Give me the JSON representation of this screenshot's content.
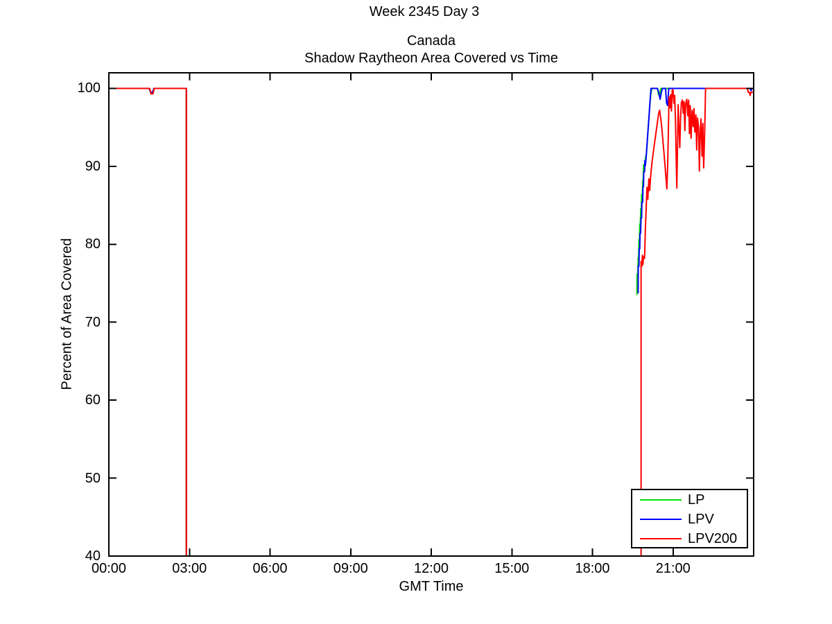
{
  "chart_data": {
    "type": "line",
    "suptitle": "Week 2345 Day 3",
    "title_lines": [
      "Canada",
      "Shadow Raytheon Area Covered vs Time"
    ],
    "xlabel": "GMT Time",
    "ylabel": "Percent of Area Covered",
    "x_axis": {
      "unit": "hours GMT",
      "range": [
        0,
        24
      ]
    },
    "ylim": [
      40,
      102
    ],
    "grid": false,
    "x_ticks": [
      {
        "h": 0,
        "label": "00:00"
      },
      {
        "h": 3,
        "label": "03:00"
      },
      {
        "h": 6,
        "label": "06:00"
      },
      {
        "h": 9,
        "label": "09:00"
      },
      {
        "h": 12,
        "label": "12:00"
      },
      {
        "h": 15,
        "label": "15:00"
      },
      {
        "h": 18,
        "label": "18:00"
      },
      {
        "h": 21,
        "label": "21:00"
      }
    ],
    "y_ticks": [
      {
        "v": 40,
        "label": "40"
      },
      {
        "v": 50,
        "label": "50"
      },
      {
        "v": 60,
        "label": "60"
      },
      {
        "v": 70,
        "label": "70"
      },
      {
        "v": 80,
        "label": "80"
      },
      {
        "v": 90,
        "label": "90"
      },
      {
        "v": 100,
        "label": "100"
      }
    ],
    "legend": {
      "position": "southeast"
    },
    "series": [
      {
        "name": "LP",
        "color": "#00e000",
        "points": [
          [
            0,
            100
          ],
          [
            1.5,
            100
          ],
          [
            1.56,
            99.4
          ],
          [
            1.63,
            99.4
          ],
          [
            1.68,
            100
          ],
          [
            2.885,
            100
          ],
          [
            2.885,
            38.5
          ],
          null,
          [
            19.655,
            73.5
          ],
          [
            19.66,
            76.2
          ],
          [
            19.69,
            76.2
          ],
          [
            19.7,
            78.3
          ],
          [
            19.72,
            78.3
          ],
          [
            19.73,
            80.6
          ],
          [
            19.75,
            80.6
          ],
          [
            19.76,
            82.6
          ],
          [
            19.78,
            82.6
          ],
          [
            19.8,
            84.6
          ],
          [
            19.82,
            84.6
          ],
          [
            19.83,
            86.4
          ],
          [
            19.86,
            86.4
          ],
          [
            19.87,
            88.2
          ],
          [
            19.89,
            88.2
          ],
          [
            19.9,
            90.2
          ],
          [
            19.93,
            90.2
          ],
          [
            19.94,
            89.6
          ],
          [
            19.97,
            91.0
          ],
          [
            20.01,
            91.6
          ],
          [
            20.05,
            93.6
          ],
          [
            20.09,
            95.6
          ],
          [
            20.13,
            97.6
          ],
          [
            20.17,
            99.2
          ],
          [
            20.21,
            100
          ],
          [
            20.42,
            100
          ],
          [
            20.46,
            99.2
          ],
          [
            20.5,
            99.2
          ],
          [
            20.54,
            100
          ],
          [
            24,
            100
          ]
        ]
      },
      {
        "name": "LPV",
        "color": "#0000ff",
        "points": [
          [
            0,
            100
          ],
          [
            1.5,
            100
          ],
          [
            1.555,
            99.5
          ],
          [
            1.625,
            99.5
          ],
          [
            1.675,
            100
          ],
          [
            2.885,
            100
          ],
          [
            2.885,
            38.5
          ],
          null,
          [
            19.7,
            73.7
          ],
          [
            19.705,
            77.2
          ],
          [
            19.73,
            77.2
          ],
          [
            19.74,
            79.4
          ],
          [
            19.76,
            79.4
          ],
          [
            19.77,
            81.4
          ],
          [
            19.79,
            81.4
          ],
          [
            19.81,
            83.4
          ],
          [
            19.83,
            83.4
          ],
          [
            19.84,
            85.4
          ],
          [
            19.87,
            85.4
          ],
          [
            19.88,
            87.4
          ],
          [
            19.9,
            87.4
          ],
          [
            19.91,
            89.3
          ],
          [
            19.94,
            89.3
          ],
          [
            19.95,
            90.7
          ],
          [
            19.97,
            90.1
          ],
          [
            20.0,
            91.2
          ],
          [
            20.05,
            93.8
          ],
          [
            20.1,
            96.1
          ],
          [
            20.14,
            98.2
          ],
          [
            20.18,
            100
          ],
          [
            20.42,
            100
          ],
          [
            20.47,
            99.4
          ],
          [
            20.52,
            98.6
          ],
          [
            20.57,
            99.6
          ],
          [
            20.61,
            100
          ],
          [
            20.72,
            100
          ],
          [
            20.76,
            98.1
          ],
          [
            20.8,
            97.8
          ],
          [
            20.84,
            100
          ],
          [
            23.87,
            100
          ],
          [
            23.9,
            99.7
          ],
          [
            23.94,
            100
          ],
          [
            24,
            100
          ]
        ]
      },
      {
        "name": "LPV200",
        "color": "#ff0000",
        "points": [
          [
            0,
            100
          ],
          [
            1.52,
            100
          ],
          [
            1.57,
            99.3
          ],
          [
            1.64,
            99.3
          ],
          [
            1.69,
            100
          ],
          [
            2.885,
            100
          ],
          [
            2.885,
            38.5
          ],
          null,
          [
            19.81,
            38.5
          ],
          [
            19.81,
            77.8
          ],
          [
            19.84,
            77.2
          ],
          [
            19.86,
            78.6
          ],
          [
            19.88,
            77.4
          ],
          [
            19.9,
            78.4
          ],
          [
            19.94,
            78.2
          ],
          [
            19.97,
            82.0
          ],
          [
            20.0,
            84.6
          ],
          [
            20.03,
            87.3
          ],
          [
            20.06,
            85.8
          ],
          [
            20.1,
            88.4
          ],
          [
            20.13,
            86.9
          ],
          [
            20.17,
            88.9
          ],
          [
            20.22,
            90.6
          ],
          [
            20.28,
            92.2
          ],
          [
            20.34,
            93.7
          ],
          [
            20.4,
            95.2
          ],
          [
            20.46,
            96.7
          ],
          [
            20.5,
            97.2
          ],
          [
            20.54,
            96.2
          ],
          [
            20.58,
            95.0
          ],
          [
            20.63,
            93.0
          ],
          [
            20.68,
            91.0
          ],
          [
            20.73,
            88.8
          ],
          [
            20.77,
            87.1
          ],
          [
            20.8,
            90.2
          ],
          [
            20.83,
            95.2
          ],
          [
            20.85,
            98.9
          ],
          [
            20.88,
            97.5
          ],
          [
            20.91,
            99.2
          ],
          [
            20.94,
            97.1
          ],
          [
            20.97,
            99.8
          ],
          [
            21.0,
            99.8
          ],
          [
            21.03,
            98.1
          ],
          [
            21.06,
            99.1
          ],
          [
            21.09,
            96.1
          ],
          [
            21.11,
            92.1
          ],
          [
            21.14,
            87.2
          ],
          [
            21.17,
            93.2
          ],
          [
            21.19,
            97.9
          ],
          [
            21.22,
            95.1
          ],
          [
            21.25,
            92.4
          ],
          [
            21.28,
            96.1
          ],
          [
            21.31,
            98.2
          ],
          [
            21.35,
            98.5
          ],
          [
            21.38,
            96.8
          ],
          [
            21.41,
            98.3
          ],
          [
            21.44,
            94.6
          ],
          [
            21.47,
            98.0
          ],
          [
            21.51,
            98.6
          ],
          [
            21.55,
            96.5
          ],
          [
            21.58,
            98.5
          ],
          [
            21.61,
            94.2
          ],
          [
            21.64,
            97.8
          ],
          [
            21.67,
            93.6
          ],
          [
            21.71,
            97.2
          ],
          [
            21.75,
            95.1
          ],
          [
            21.78,
            97.4
          ],
          [
            21.81,
            94.4
          ],
          [
            21.85,
            96.6
          ],
          [
            21.88,
            92.1
          ],
          [
            21.91,
            96.2
          ],
          [
            21.95,
            95.0
          ],
          [
            21.98,
            89.4
          ],
          [
            22.01,
            94.1
          ],
          [
            22.04,
            96.1
          ],
          [
            22.08,
            91.3
          ],
          [
            22.11,
            95.5
          ],
          [
            22.14,
            89.8
          ],
          [
            22.18,
            94.7
          ],
          [
            22.21,
            100
          ],
          [
            23.77,
            100
          ],
          [
            23.8,
            99.5
          ],
          [
            23.84,
            99.5
          ],
          [
            23.87,
            99.1
          ],
          [
            23.9,
            99.5
          ],
          [
            24,
            99.5
          ]
        ]
      }
    ]
  }
}
